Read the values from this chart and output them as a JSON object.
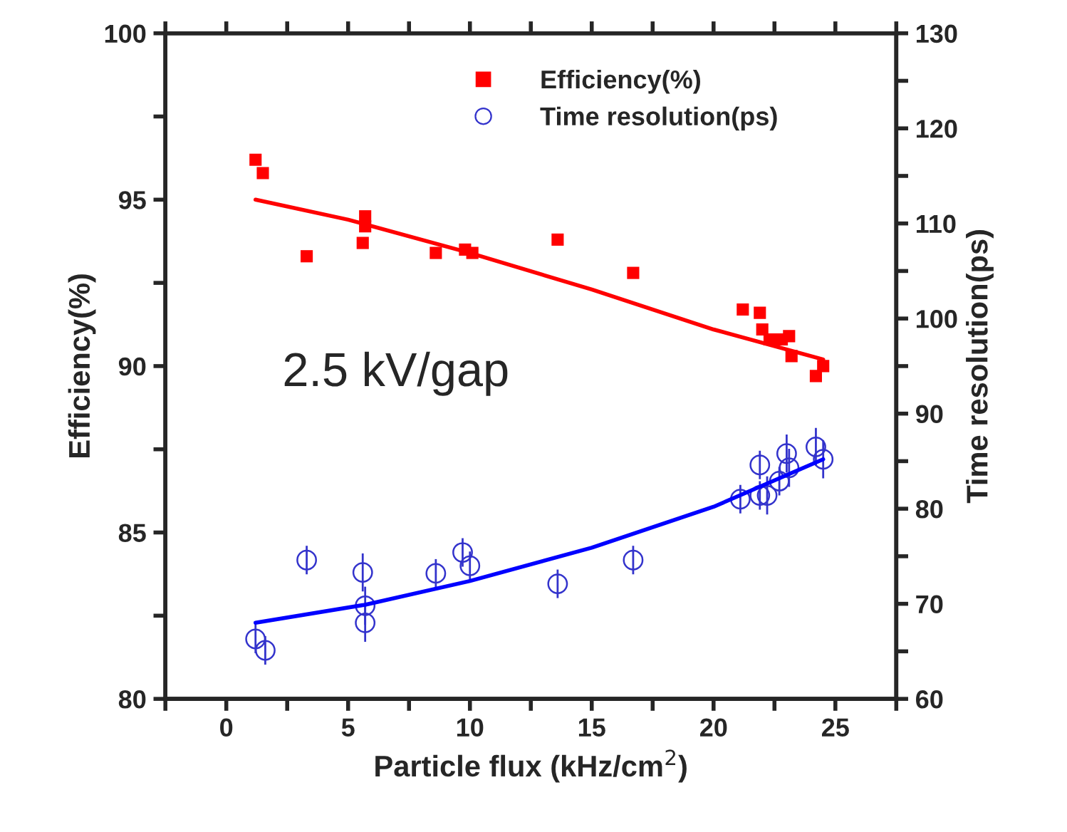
{
  "chart_data": {
    "type": "scatter",
    "xlabel": "Particle flux (kHz/cm$^{2}$)",
    "ylabel": "Efficiency(%)",
    "y2label": "Time resolution(ps)",
    "xlim": [
      -2.5,
      27.5
    ],
    "ylim": [
      80,
      100
    ],
    "y2lim": [
      60,
      130
    ],
    "xticks": [
      {
        "value": -2.5,
        "label": null
      },
      0,
      {
        "value": 2.5,
        "label": null
      },
      5,
      {
        "value": 7.5,
        "label": null
      },
      10,
      {
        "value": 12.5,
        "label": null
      },
      15,
      {
        "value": 17.5,
        "label": null
      },
      20,
      {
        "value": 22.5,
        "label": null
      },
      25,
      {
        "value": 27.5,
        "label": null
      }
    ],
    "yticks": [
      80,
      {
        "value": 82.5,
        "label": null
      },
      85,
      {
        "value": 87.5,
        "label": null
      },
      90,
      {
        "value": 92.5,
        "label": null
      },
      95,
      {
        "value": 97.5,
        "label": null
      },
      100
    ],
    "y2ticks": [
      60,
      {
        "value": 65,
        "label": null
      },
      70,
      {
        "value": 75,
        "label": null
      },
      80,
      {
        "value": 85,
        "label": null
      },
      90,
      {
        "value": 95,
        "label": null
      },
      100,
      {
        "value": 105,
        "label": null
      },
      110,
      {
        "value": 115,
        "label": null
      },
      120,
      {
        "value": 125,
        "label": null
      },
      130
    ],
    "legend": "top right",
    "grid": false,
    "annotations": [
      "2.5 kV/gap"
    ],
    "series": [
      {
        "name": "Efficiency(%)",
        "marker": "square",
        "color": "#ff0000",
        "x": [
          1.2,
          1.5,
          3.3,
          5.6,
          5.7,
          5.7,
          8.6,
          9.8,
          10.1,
          13.6,
          16.7,
          21.2,
          21.9,
          22.0,
          22.3,
          22.8,
          23.1,
          23.2,
          24.2,
          24.5
        ],
        "values": [
          96.2,
          95.8,
          93.3,
          93.7,
          94.2,
          94.5,
          93.4,
          93.5,
          93.4,
          93.8,
          92.8,
          91.7,
          91.6,
          91.1,
          90.8,
          90.8,
          90.9,
          90.3,
          89.7,
          90.0
        ]
      },
      {
        "name": "Time resolution(ps)",
        "marker": "circle",
        "axis": "y2",
        "color": "#3333cc",
        "x": [
          1.2,
          1.6,
          3.3,
          5.6,
          5.7,
          5.7,
          8.6,
          9.7,
          10.0,
          13.6,
          16.7,
          21.1,
          21.9,
          21.9,
          22.2,
          22.7,
          23.0,
          23.1,
          24.2,
          24.5
        ],
        "values": [
          66.3,
          65.1,
          74.6,
          73.3,
          69.8,
          68.0,
          73.2,
          75.4,
          74.0,
          72.1,
          74.6,
          81.0,
          84.6,
          81.4,
          81.4,
          82.9,
          85.8,
          84.3,
          86.5,
          85.2
        ],
        "errors": [
          1.5,
          1.5,
          1.5,
          2,
          2,
          2,
          1.5,
          1.5,
          1.5,
          1.5,
          1.5,
          1.5,
          1.5,
          1.5,
          2,
          1.5,
          2,
          2,
          2,
          2
        ]
      },
      {
        "type": "line",
        "color": "#ff0000",
        "x": [
          1.2,
          5,
          10,
          15,
          20,
          24.5
        ],
        "values": [
          95.0,
          94.4,
          93.4,
          92.3,
          91.1,
          90.2
        ]
      },
      {
        "type": "line",
        "axis": "y2",
        "color": "#0000ff",
        "x": [
          1.2,
          5.7,
          10,
          15,
          20,
          24.5
        ],
        "values": [
          68.0,
          69.9,
          72.4,
          75.9,
          80.2,
          85.2
        ]
      }
    ]
  }
}
